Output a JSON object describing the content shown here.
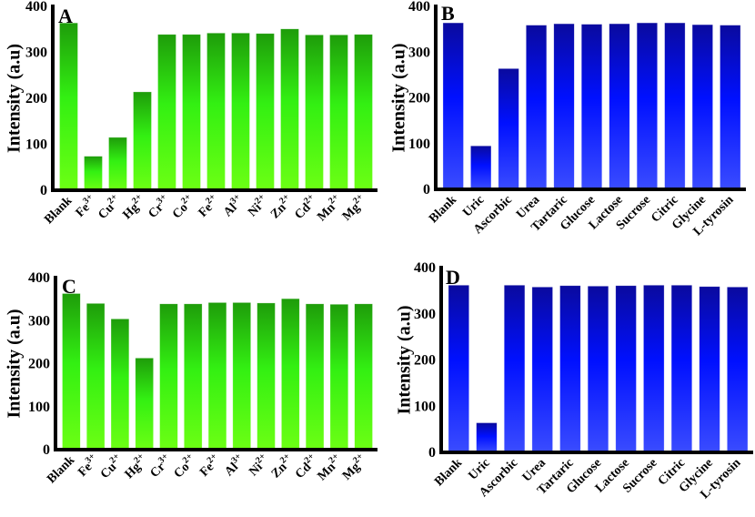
{
  "chart_data": [
    {
      "type": "bar",
      "panel_label": "A",
      "ylabel": "Intensity (a.u)",
      "ylim": [
        0,
        400
      ],
      "yticks": [
        "0",
        "100",
        "200",
        "300",
        "400"
      ],
      "categories": [
        {
          "base": "Blank",
          "sup": ""
        },
        {
          "base": "Fe",
          "sup": "3+"
        },
        {
          "base": "Cu",
          "sup": "2+"
        },
        {
          "base": "Hg",
          "sup": "2+"
        },
        {
          "base": "Cr",
          "sup": "3+"
        },
        {
          "base": "Co",
          "sup": "2+"
        },
        {
          "base": "Fe",
          "sup": "2+"
        },
        {
          "base": "Al",
          "sup": "3+"
        },
        {
          "base": "Ni",
          "sup": "2+"
        },
        {
          "base": "Zn",
          "sup": "2+"
        },
        {
          "base": "Cd",
          "sup": "2+"
        },
        {
          "base": "Mn",
          "sup": "2+"
        },
        {
          "base": "Mg",
          "sup": "2+"
        }
      ],
      "values": [
        364,
        74,
        115,
        214,
        339,
        339,
        342,
        342,
        341,
        351,
        338,
        338,
        339
      ],
      "color_scheme": "green",
      "colors": [
        "#1e9c0a",
        "#33f012",
        "#6cff14"
      ]
    },
    {
      "type": "bar",
      "panel_label": "B",
      "ylabel": "Intensity (a.u)",
      "ylim": [
        0,
        400
      ],
      "yticks": [
        "0",
        "100",
        "200",
        "300",
        "400"
      ],
      "categories": [
        {
          "base": "Blank",
          "sup": ""
        },
        {
          "base": "Uric",
          "sup": ""
        },
        {
          "base": "Ascorbic",
          "sup": ""
        },
        {
          "base": "Urea",
          "sup": ""
        },
        {
          "base": "Tartaric",
          "sup": ""
        },
        {
          "base": "Glucose",
          "sup": ""
        },
        {
          "base": "Lactose",
          "sup": ""
        },
        {
          "base": "Sucrose",
          "sup": ""
        },
        {
          "base": "Citric",
          "sup": ""
        },
        {
          "base": "Glycine",
          "sup": ""
        },
        {
          "base": "L-tyrosin",
          "sup": ""
        }
      ],
      "values": [
        364,
        95,
        264,
        359,
        362,
        361,
        362,
        364,
        364,
        360,
        359
      ],
      "color_scheme": "blue",
      "colors": [
        "#0a0a9e",
        "#0010ff",
        "#3a4cff"
      ]
    },
    {
      "type": "bar",
      "panel_label": "C",
      "ylabel": "Intensity (a.u)",
      "ylim": [
        0,
        400
      ],
      "yticks": [
        "0",
        "100",
        "200",
        "300",
        "400"
      ],
      "categories": [
        {
          "base": "Blank",
          "sup": ""
        },
        {
          "base": "Fe",
          "sup": "3+"
        },
        {
          "base": "Cu",
          "sup": "2+"
        },
        {
          "base": "Hg",
          "sup": "2+"
        },
        {
          "base": "Cr",
          "sup": "3+"
        },
        {
          "base": "Co",
          "sup": "2+"
        },
        {
          "base": "Fe",
          "sup": "2+"
        },
        {
          "base": "Al",
          "sup": "3+"
        },
        {
          "base": "Ni",
          "sup": "2+"
        },
        {
          "base": "Zn",
          "sup": "2+"
        },
        {
          "base": "Cd",
          "sup": "2+"
        },
        {
          "base": "Mn",
          "sup": "2+"
        },
        {
          "base": "Mg",
          "sup": "2+"
        }
      ],
      "values": [
        363,
        340,
        304,
        213,
        339,
        339,
        342,
        342,
        341,
        351,
        339,
        338,
        339
      ],
      "color_scheme": "green",
      "colors": [
        "#1e9c0a",
        "#33f012",
        "#6cff14"
      ]
    },
    {
      "type": "bar",
      "panel_label": "D",
      "ylabel": "Intensity (a.u)",
      "ylim": [
        0,
        400
      ],
      "yticks": [
        "0",
        "100",
        "200",
        "300",
        "400"
      ],
      "categories": [
        {
          "base": "Blank",
          "sup": ""
        },
        {
          "base": "Uric",
          "sup": ""
        },
        {
          "base": "Ascorbic",
          "sup": ""
        },
        {
          "base": "Urea",
          "sup": ""
        },
        {
          "base": "Tartaric",
          "sup": ""
        },
        {
          "base": "Glucose",
          "sup": ""
        },
        {
          "base": "Lactose",
          "sup": ""
        },
        {
          "base": "Sucrose",
          "sup": ""
        },
        {
          "base": "Citric",
          "sup": ""
        },
        {
          "base": "Glycine",
          "sup": ""
        },
        {
          "base": "L-tyrosin",
          "sup": ""
        }
      ],
      "values": [
        362,
        64,
        362,
        358,
        361,
        360,
        361,
        362,
        362,
        359,
        358
      ],
      "color_scheme": "blue",
      "colors": [
        "#0a0a9e",
        "#0010ff",
        "#3a4cff"
      ]
    }
  ]
}
